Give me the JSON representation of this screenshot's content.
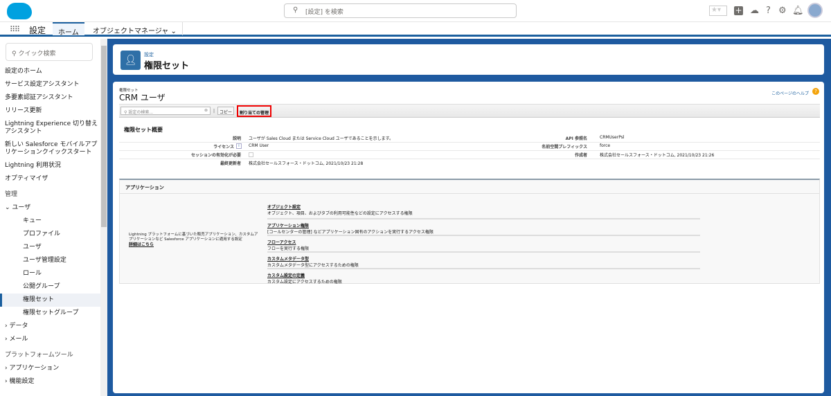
{
  "header": {
    "search_placeholder": "[設定] を検索",
    "brand_color": "#00a1e0"
  },
  "nav": {
    "app_name": "設定",
    "tabs": [
      {
        "label": "ホーム",
        "active": true
      },
      {
        "label": "オブジェクトマネージャ"
      }
    ]
  },
  "sidebar": {
    "quick_find_placeholder": "クイック検索",
    "items": [
      {
        "label": "設定のホーム"
      },
      {
        "label": "サービス設定アシスタント"
      },
      {
        "label": "多要素認証アシスタント"
      },
      {
        "label": "リリース更新"
      },
      {
        "label": "Lightning Experience 切り替えアシスタント"
      },
      {
        "label": "新しい Salesforce モバイルアプリケーションクイックスタート"
      },
      {
        "label": "Lightning 利用状況"
      },
      {
        "label": "オプティマイザ"
      }
    ],
    "section_admin": "管理",
    "user_group": "ユーザ",
    "user_items": [
      "キュー",
      "プロファイル",
      "ユーザ",
      "ユーザ管理設定",
      "ロール",
      "公開グループ",
      "権限セット",
      "権限セットグループ"
    ],
    "selected": "権限セット",
    "data": "データ",
    "mail": "メール",
    "section_platform": "プラットフォームツール",
    "apps": "アプリケーション",
    "features": "機能設定"
  },
  "page_header": {
    "breadcrumb": "設定",
    "title": "権限セット"
  },
  "detail": {
    "object_type": "権限セット",
    "name": "CRM ユーザ",
    "help_link": "このページのヘルプ",
    "search_placeholder": "設定の検索...",
    "copy_button": "コピー",
    "manage_assignments_button": "割り当ての管理",
    "section_title": "権限セット概要",
    "fields_left": [
      {
        "label": "説明",
        "value": "ユーザが Sales Cloud または Service Cloud ユーザであることを示します。"
      },
      {
        "label": "ライセンス",
        "value": "CRM User"
      },
      {
        "label": "セッションの有効化が必要",
        "value": ""
      },
      {
        "label": "最終更新者",
        "value": "株式会社セールスフォース・ドットコム, 2021/10/23 21:28"
      }
    ],
    "fields_right": [
      {
        "label": "API 参照名",
        "value": "CRMUserPsl"
      },
      {
        "label": "名前空間プレフィックス",
        "value": "force"
      },
      {
        "label": "作成者",
        "value": "株式会社セールスフォース・ドットコム, 2021/10/23 21:26"
      }
    ],
    "apps_title": "アプリケーション",
    "apps_desc": "Lightning プラットフォームに基づいた販売アプリケーション、カスタムアプリケーションなど Salesforce アプリケーションに適用する設定",
    "apps_more": "詳細はこちら",
    "app_links": [
      {
        "title": "オブジェクト設定",
        "desc": "オブジェクト、項目、およびタブの利用可能性などの設定にアクセスする権限"
      },
      {
        "title": "アプリケーション権限",
        "desc": "[コールセンターの管理] などアプリケーション固有のアクションを実行するアクセス権限"
      },
      {
        "title": "フローアクセス",
        "desc": "フローを実行する権限"
      },
      {
        "title": "カスタムメタデータ型",
        "desc": "カスタムメタデータ型にアクセスするための権限"
      },
      {
        "title": "カスタム設定の定義",
        "desc": "カスタム設定にアクセスするための権限"
      }
    ]
  }
}
